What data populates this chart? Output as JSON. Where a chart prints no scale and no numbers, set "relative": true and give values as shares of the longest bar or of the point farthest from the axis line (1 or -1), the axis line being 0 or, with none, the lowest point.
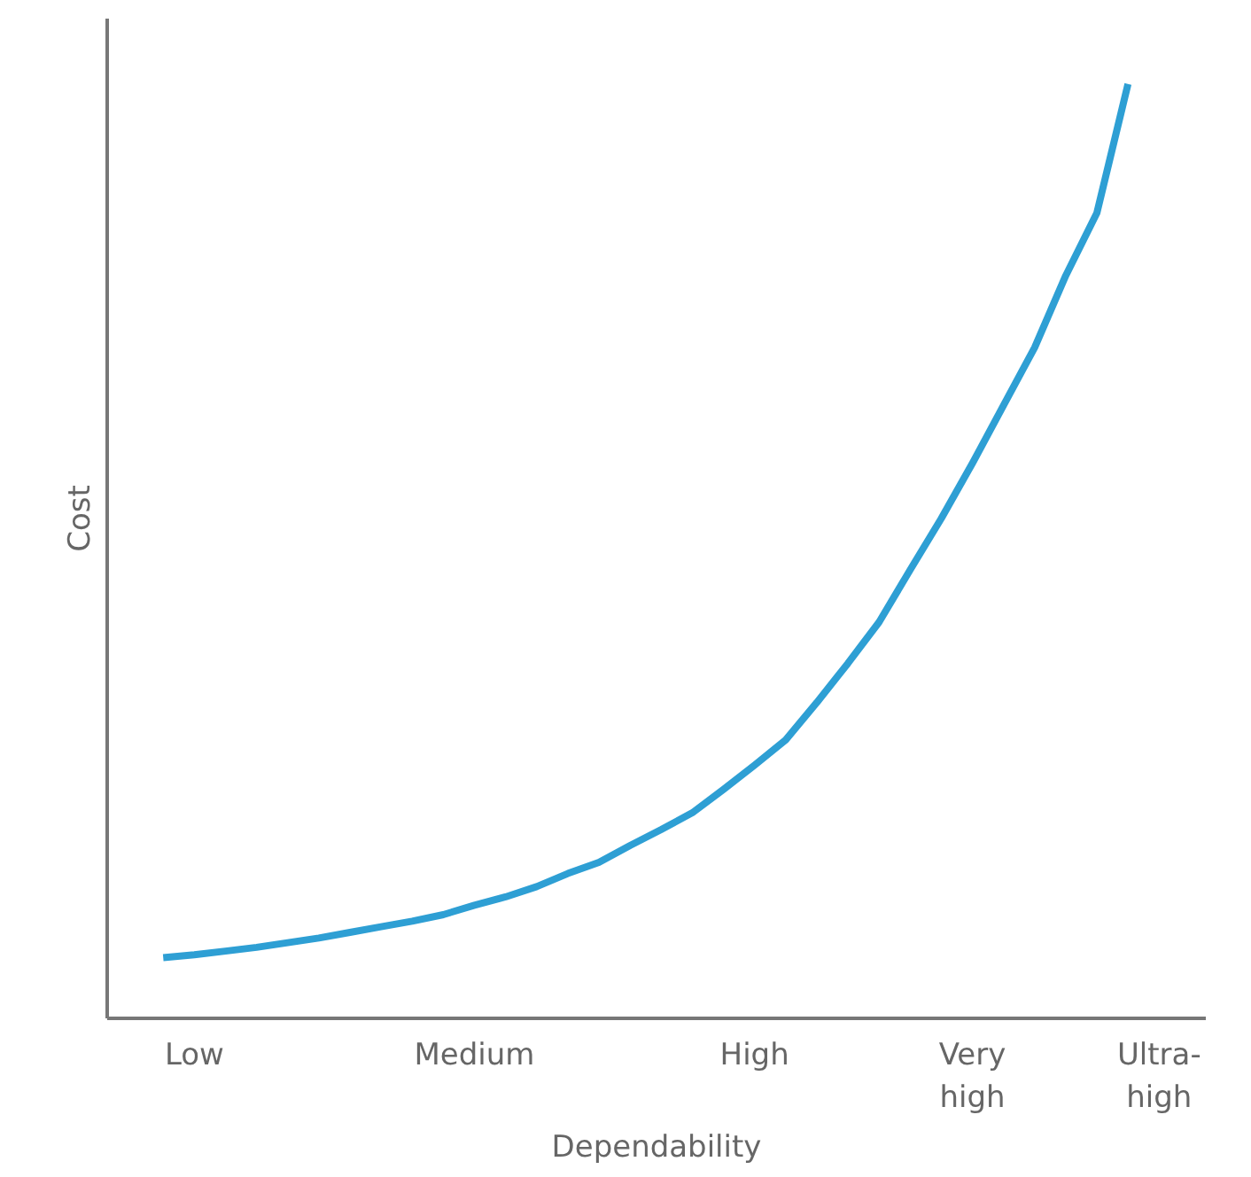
{
  "chart_data": {
    "type": "line",
    "relative": true,
    "xlabel": "Dependability",
    "ylabel": "Cost",
    "grid": false,
    "marker": "none",
    "line_style": "solid",
    "categories": [
      null,
      "Low",
      null,
      null,
      null,
      null,
      null,
      null,
      null,
      null,
      "Medium",
      null,
      null,
      null,
      null,
      null,
      null,
      null,
      null,
      "High",
      null,
      null,
      null,
      null,
      null,
      null,
      "Very\nhigh",
      null,
      null,
      null,
      null,
      null,
      "Ultra-\nhigh"
    ],
    "series": [
      {
        "color": "#2e9fd4",
        "values": [
          0.065,
          0.068,
          0.072,
          0.076,
          0.081,
          0.086,
          0.092,
          0.098,
          0.104,
          0.111,
          0.121,
          0.13,
          0.141,
          0.155,
          0.167,
          0.185,
          0.202,
          0.22,
          0.245,
          0.271,
          0.298,
          0.338,
          0.38,
          0.424,
          0.48,
          0.535,
          0.594,
          0.656,
          0.718,
          0.795,
          0.862,
          1.0,
          null
        ]
      }
    ]
  }
}
